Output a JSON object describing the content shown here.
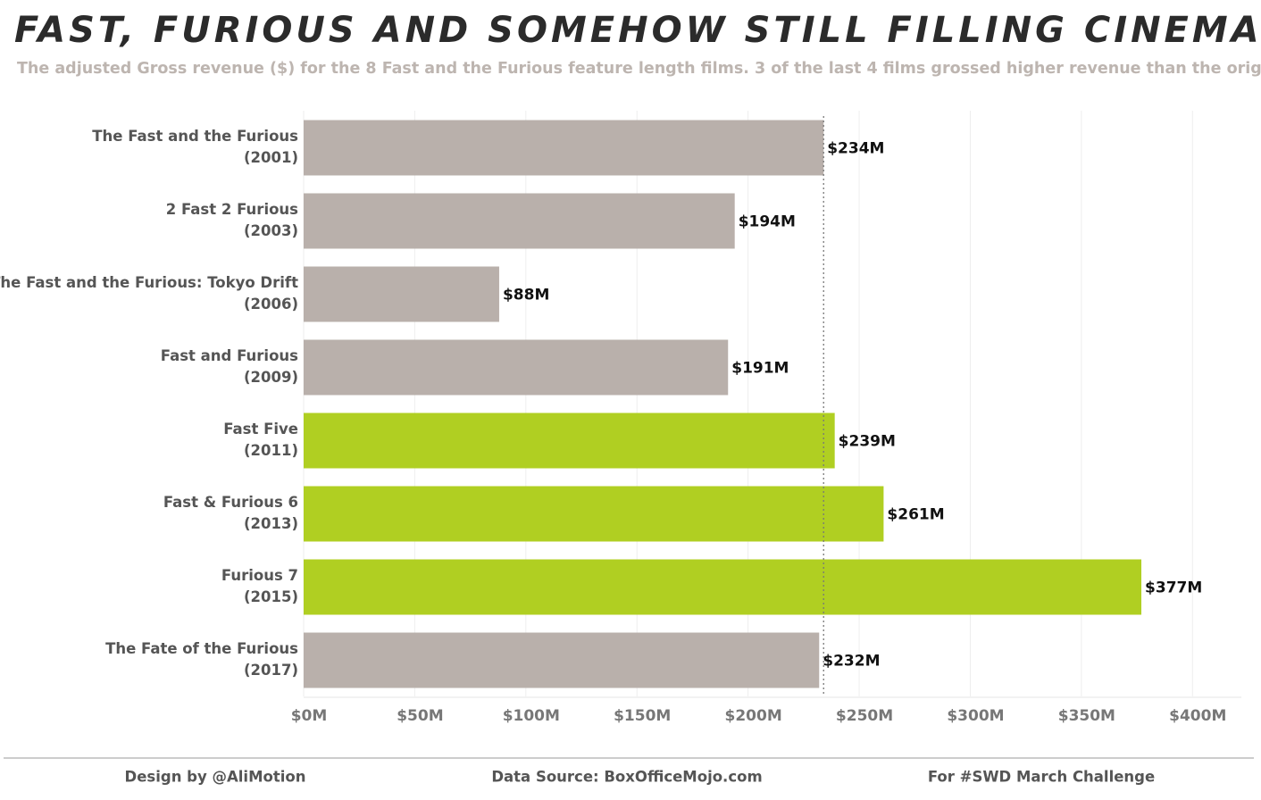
{
  "chart_data": {
    "type": "hbar",
    "title": "FAST, FURIOUS AND SOMEHOW STILL FILLING CINEMAS",
    "subtitle": "The adjusted Gross revenue ($) for the 8 Fast and the Furious feature length films. 3 of the last 4 films grossed higher revenue than the original",
    "categories": [
      "The Fast and the Furious",
      "2 Fast 2 Furious",
      "The Fast and the Furious: Tokyo Drift",
      "Fast and Furious",
      "Fast Five",
      "Fast & Furious 6",
      "Furious 7",
      "The Fate of the Furious"
    ],
    "years": [
      "(2001)",
      "(2003)",
      "(2006)",
      "(2009)",
      "(2011)",
      "(2013)",
      "(2015)",
      "(2017)"
    ],
    "values": [
      234,
      194,
      88,
      191,
      239,
      261,
      377,
      232
    ],
    "value_labels": [
      "$234M",
      "$194M",
      "$88M",
      "$191M",
      "$239M",
      "$261M",
      "$377M",
      "$232M"
    ],
    "colors": [
      "#b9b0ab",
      "#b9b0ab",
      "#b9b0ab",
      "#b9b0ab",
      "#b0cf22",
      "#b0cf22",
      "#b0cf22",
      "#b9b0ab"
    ],
    "xlim": [
      0,
      422
    ],
    "xticks": [
      {
        "value": 0,
        "label": "$0M"
      },
      {
        "value": 50,
        "label": "$50M"
      },
      {
        "value": 100,
        "label": "$100M"
      },
      {
        "value": 150,
        "label": "$150M"
      },
      {
        "value": 200,
        "label": "$200M"
      },
      {
        "value": 250,
        "label": "$250M"
      },
      {
        "value": 300,
        "label": "$300M"
      },
      {
        "value": 350,
        "label": "$350M"
      },
      {
        "value": 400,
        "label": "$400M"
      }
    ],
    "grid": true,
    "footer": [
      "Design by @AliMotion",
      "Data Source: BoxOfficeMojo.com",
      "For #SWD March Challenge"
    ]
  }
}
